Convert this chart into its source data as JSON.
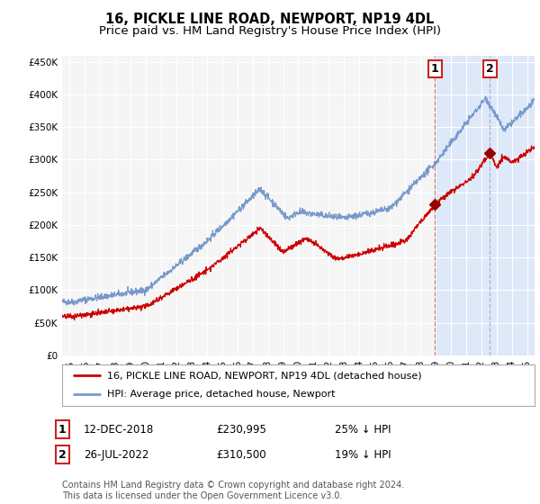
{
  "title": "16, PICKLE LINE ROAD, NEWPORT, NP19 4DL",
  "subtitle": "Price paid vs. HM Land Registry's House Price Index (HPI)",
  "title_fontsize": 10.5,
  "subtitle_fontsize": 9.5,
  "background_color": "#ffffff",
  "plot_bg_color": "#f5f5f5",
  "grid_color": "#ffffff",
  "red_line_color": "#cc0000",
  "blue_line_color": "#7799cc",
  "shaded_region_color": "#dde8f8",
  "vline1_color": "#cc6666",
  "vline2_color": "#9999bb",
  "marker_color": "#990000",
  "ylim": [
    0,
    460000
  ],
  "yticks": [
    0,
    50000,
    100000,
    150000,
    200000,
    250000,
    300000,
    350000,
    400000,
    450000
  ],
  "ytick_labels": [
    "£0",
    "£50K",
    "£100K",
    "£150K",
    "£200K",
    "£250K",
    "£300K",
    "£350K",
    "£400K",
    "£450K"
  ],
  "xtick_years": [
    1995,
    1996,
    1997,
    1998,
    1999,
    2000,
    2001,
    2002,
    2003,
    2004,
    2005,
    2006,
    2007,
    2008,
    2009,
    2010,
    2011,
    2012,
    2013,
    2014,
    2015,
    2016,
    2017,
    2018,
    2019,
    2020,
    2021,
    2022,
    2023,
    2024,
    2025
  ],
  "xlim_left": 1994.5,
  "xlim_right": 2025.5,
  "purchase1_date": 2018.95,
  "purchase1_price": 230995,
  "purchase1_label": "1",
  "purchase2_date": 2022.57,
  "purchase2_price": 310500,
  "purchase2_label": "2",
  "legend_red": "16, PICKLE LINE ROAD, NEWPORT, NP19 4DL (detached house)",
  "legend_blue": "HPI: Average price, detached house, Newport",
  "annotation1_date": "12-DEC-2018",
  "annotation1_price": "£230,995",
  "annotation1_hpi": "25% ↓ HPI",
  "annotation2_date": "26-JUL-2022",
  "annotation2_price": "£310,500",
  "annotation2_hpi": "19% ↓ HPI",
  "footer": "Contains HM Land Registry data © Crown copyright and database right 2024.\nThis data is licensed under the Open Government Licence v3.0.",
  "footer_fontsize": 7.0,
  "tick_fontsize": 7.5,
  "legend_fontsize": 8.0,
  "annotation_fontsize": 8.5
}
